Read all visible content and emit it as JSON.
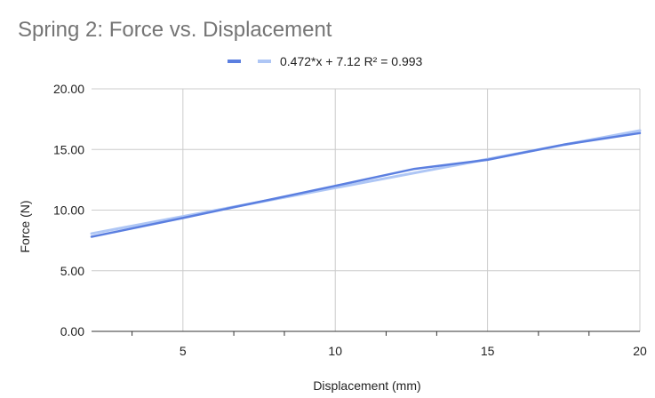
{
  "chart_data": {
    "type": "line",
    "title": "Spring 2: Force vs. Displacement",
    "xlabel": "Displacement (mm)",
    "ylabel": "Force (N)",
    "xlim": [
      2,
      20
    ],
    "ylim": [
      0,
      20
    ],
    "x_ticks": [
      5,
      10,
      15,
      20
    ],
    "x_minor_ticks": [
      3.33,
      6.67,
      8.33,
      11.67,
      13.33,
      16.67,
      18.33
    ],
    "y_ticks": [
      "0.00",
      "5.00",
      "10.00",
      "15.00",
      "20.00"
    ],
    "grid": true,
    "legend_position": "top",
    "legend_label": "0.472*x + 7.12 R² = 0.993",
    "series": [
      {
        "color": "#5b7fe0",
        "x": [
          2,
          5,
          10,
          12.6,
          15,
          17.5,
          20
        ],
        "y": [
          7.8,
          9.35,
          12.0,
          13.4,
          14.15,
          15.4,
          16.35
        ]
      },
      {
        "color": "#aec6f5",
        "x": [
          2,
          20
        ],
        "y": [
          8.064,
          16.56
        ]
      }
    ]
  }
}
